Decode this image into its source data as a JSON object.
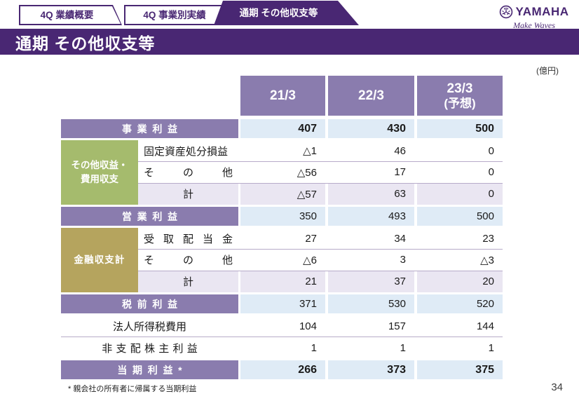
{
  "tabs": [
    {
      "label": "4Q 業績概要",
      "active": false
    },
    {
      "label": "4Q 事業別実績",
      "active": false
    },
    {
      "label": "通期 その他収支等",
      "active": true
    }
  ],
  "brand": {
    "name": "YAMAHA",
    "tagline": "Make Waves"
  },
  "slide": {
    "title": "通期 その他収支等",
    "unit": "(億円)",
    "footnote": "* 親会社の所有者に帰属する当期利益",
    "page_number": "34"
  },
  "colors": {
    "dark_purple": "#492773",
    "mid_purple": "#8A7CAE",
    "green": "#A5BB6D",
    "khaki": "#B5A45E",
    "light_blue": "#DFEBF6",
    "lavender": "#EAE6F2",
    "separator_line": "#B7ABC9"
  },
  "table": {
    "columns": [
      {
        "label": "21/3",
        "sublabel": ""
      },
      {
        "label": "22/3",
        "sublabel": ""
      },
      {
        "label": "23/3",
        "sublabel": "(予想)"
      }
    ],
    "sections": [
      {
        "type": "summary",
        "label": "事業利益",
        "bold": true,
        "values": [
          "407",
          "430",
          "500"
        ]
      },
      {
        "type": "group",
        "label_lines": [
          "その他収益・",
          "費用収支"
        ],
        "color": "green",
        "rows": [
          {
            "label": "固定資産処分損益",
            "align": "left",
            "values": [
              "△1",
              "46",
              "0"
            ]
          },
          {
            "label": "その他",
            "align": "justify",
            "values": [
              "△56",
              "17",
              "0"
            ]
          },
          {
            "label": "計",
            "align": "center",
            "total": true,
            "values": [
              "△57",
              "63",
              "0"
            ]
          }
        ]
      },
      {
        "type": "summary",
        "label": "営業利益",
        "bold": false,
        "values": [
          "350",
          "493",
          "500"
        ]
      },
      {
        "type": "group",
        "label_lines": [
          "金融収支計"
        ],
        "color": "khaki",
        "rows": [
          {
            "label": "受取配当金",
            "align": "justify",
            "values": [
              "27",
              "34",
              "23"
            ]
          },
          {
            "label": "その他",
            "align": "justify",
            "values": [
              "△6",
              "3",
              "△3"
            ]
          },
          {
            "label": "計",
            "align": "center",
            "total": true,
            "values": [
              "21",
              "37",
              "20"
            ]
          }
        ]
      },
      {
        "type": "summary",
        "label": "税前利益",
        "bold": false,
        "values": [
          "371",
          "530",
          "520"
        ]
      },
      {
        "type": "plain",
        "label": "法人所得税費用",
        "spaced": false,
        "values": [
          "104",
          "157",
          "144"
        ]
      },
      {
        "type": "plain",
        "label": "非支配株主利益",
        "spaced": true,
        "values": [
          "1",
          "1",
          "1"
        ]
      },
      {
        "type": "summary",
        "label": "当期利益*",
        "bold": true,
        "values": [
          "266",
          "373",
          "375"
        ]
      }
    ]
  }
}
